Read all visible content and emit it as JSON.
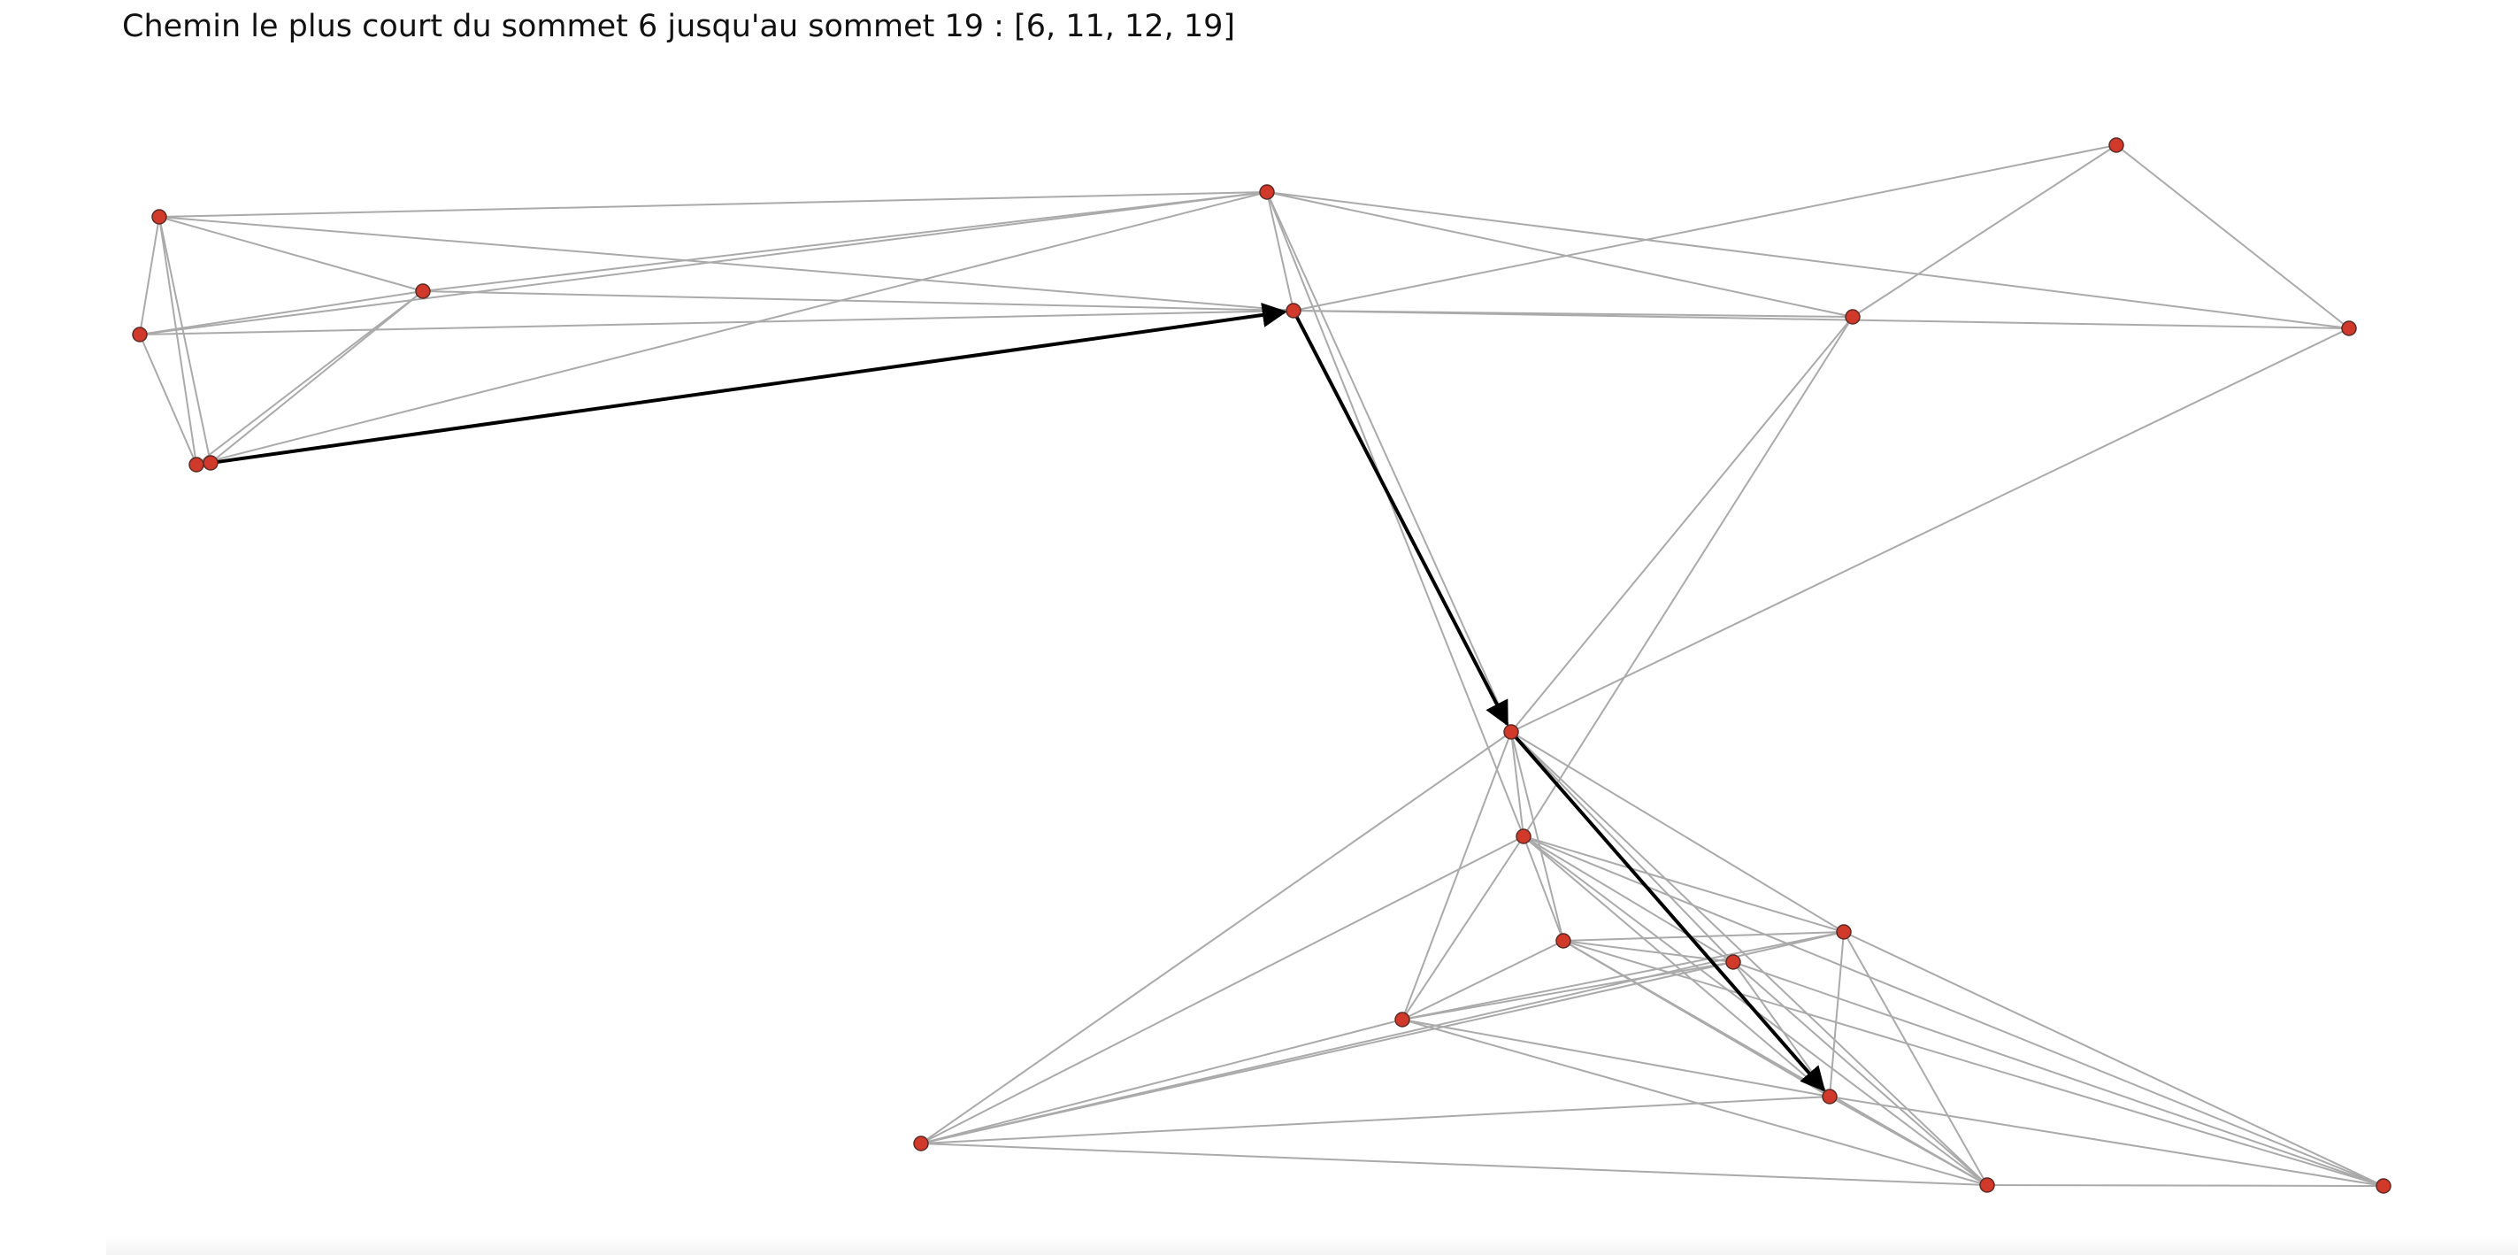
{
  "title": "Chemin le plus court du sommet 6 jusqu'au sommet 19 : [6, 11, 12, 19]",
  "colors": {
    "node_fill": "#d13a2b",
    "node_stroke": "#5a2a24",
    "edge": "#aaaaaa",
    "path_edge": "#000000"
  },
  "path": [
    6,
    11,
    12,
    19
  ],
  "nodes": [
    0,
    1,
    2,
    3,
    4,
    5,
    6,
    7,
    8,
    9,
    10,
    11,
    12,
    13,
    14,
    15,
    16,
    17,
    18,
    19,
    20,
    21,
    22
  ]
}
